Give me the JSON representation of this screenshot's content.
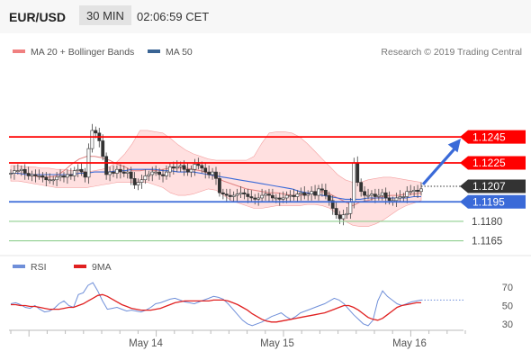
{
  "header": {
    "symbol": "EUR/USD",
    "timeframe": "30 MIN",
    "time": "02:06:59 CET"
  },
  "legend_top": [
    {
      "label": "MA 20 + Bollinger Bands",
      "color": "#f08080"
    },
    {
      "label": "MA 50",
      "color": "#3a6494"
    }
  ],
  "legend_rsi": [
    {
      "label": "RSI",
      "color": "#6f8fd9"
    },
    {
      "label": "9MA",
      "color": "#e02020"
    }
  ],
  "copyright": "Research © 2019 Trading Central",
  "colors": {
    "resistance": "#ff0000",
    "pivot": "#3a6ad8",
    "support": "#8fcf8f",
    "current": "#333333",
    "candle_up": "#555555",
    "candle_down": "#555555",
    "bb_fill": "#ffd6d6"
  },
  "chart_data": [
    {
      "type": "candlestick",
      "ylim": [
        1.1155,
        1.1295
      ],
      "x_ticks": [
        "May 14",
        "May 15",
        "May 16"
      ],
      "levels": [
        {
          "value": "1.1245",
          "kind": "resistance"
        },
        {
          "value": "1.1225",
          "kind": "resistance"
        },
        {
          "value": "1.1207",
          "kind": "current"
        },
        {
          "value": "1.1195",
          "kind": "pivot"
        },
        {
          "value": "1.1180",
          "kind": "support"
        },
        {
          "value": "1.1165",
          "kind": "support"
        }
      ],
      "forecast": {
        "from": 1.1207,
        "to": 1.1245,
        "direction": "up"
      },
      "close": [
        1.1217,
        1.1219,
        1.1219,
        1.122,
        1.1217,
        1.1215,
        1.1216,
        1.1215,
        1.1215,
        1.1214,
        1.1212,
        1.1212,
        1.1212,
        1.1214,
        1.1215,
        1.1214,
        1.1216,
        1.1215,
        1.1219,
        1.122,
        1.1218,
        1.1214,
        1.1236,
        1.125,
        1.1248,
        1.1242,
        1.123,
        1.1216,
        1.1218,
        1.1217,
        1.122,
        1.1218,
        1.1217,
        1.1218,
        1.1213,
        1.1208,
        1.121,
        1.1212,
        1.1215,
        1.1216,
        1.1218,
        1.1218,
        1.1216,
        1.1215,
        1.1218,
        1.1222,
        1.1221,
        1.1222,
        1.1223,
        1.122,
        1.1218,
        1.122,
        1.1224,
        1.1223,
        1.1221,
        1.1218,
        1.1216,
        1.1218,
        1.1213,
        1.1202,
        1.1201,
        1.12,
        1.1199,
        1.12,
        1.1201,
        1.1202,
        1.1201,
        1.1199,
        1.1198,
        1.1197,
        1.1198,
        1.12,
        1.1201,
        1.12,
        1.1198,
        1.1198,
        1.1197,
        1.1198,
        1.12,
        1.12,
        1.1199,
        1.1201,
        1.1202,
        1.12,
        1.1201,
        1.1203,
        1.12,
        1.1205,
        1.1204,
        1.12,
        1.1196,
        1.119,
        1.1185,
        1.1182,
        1.1185,
        1.1186,
        1.1195,
        1.1225,
        1.121,
        1.1203,
        1.12,
        1.12,
        1.1201,
        1.1199,
        1.12,
        1.1202,
        1.1198,
        1.1196,
        1.1196,
        1.1198,
        1.1199,
        1.1199,
        1.1203,
        1.1203,
        1.1204,
        1.1203,
        1.1205
      ],
      "bb_upper": [
        1.1223,
        1.1223,
        1.1222,
        1.1222,
        1.1221,
        1.1221,
        1.122,
        1.122,
        1.1219,
        1.1219,
        1.1218,
        1.1219,
        1.122,
        1.1222,
        1.1226,
        1.1232,
        1.124,
        1.125,
        1.125,
        1.1249,
        1.1248,
        1.1244,
        1.1239,
        1.1235,
        1.1232,
        1.123,
        1.1228,
        1.1227,
        1.1227,
        1.1227,
        1.1227,
        1.1227,
        1.123,
        1.124,
        1.1248,
        1.1249,
        1.1249,
        1.1248,
        1.1245,
        1.124,
        1.1234,
        1.1228,
        1.1222,
        1.1216,
        1.1212,
        1.121,
        1.121,
        1.1212,
        1.1213,
        1.1214,
        1.1214,
        1.1213,
        1.1212,
        1.1211,
        1.121
      ],
      "ma20": [
        1.1217,
        1.1217,
        1.1216,
        1.1215,
        1.1214,
        1.1214,
        1.1215,
        1.1219,
        1.1224,
        1.1228,
        1.123,
        1.123,
        1.1229,
        1.1227,
        1.1224,
        1.1222,
        1.1219,
        1.1219,
        1.122,
        1.1219,
        1.122,
        1.1221,
        1.1221,
        1.1221,
        1.122,
        1.1219,
        1.1217,
        1.1214,
        1.1211,
        1.1209,
        1.1207,
        1.1205,
        1.1204,
        1.1203,
        1.1202,
        1.1202,
        1.1201,
        1.12,
        1.12,
        1.1201,
        1.1202,
        1.1203,
        1.1201,
        1.1198,
        1.1195,
        1.1192,
        1.1195,
        1.1196,
        1.1198,
        1.1199,
        1.12,
        1.12,
        1.1201,
        1.1201,
        1.1202
      ],
      "bb_lower": [
        1.1211,
        1.1211,
        1.121,
        1.1209,
        1.1208,
        1.1207,
        1.1206,
        1.1206,
        1.1206,
        1.1206,
        1.1206,
        1.1207,
        1.1208,
        1.1209,
        1.121,
        1.121,
        1.121,
        1.121,
        1.121,
        1.1208,
        1.1206,
        1.1202,
        1.12,
        1.12,
        1.1201,
        1.1203,
        1.1205,
        1.1204,
        1.12,
        1.1196,
        1.1194,
        1.1192,
        1.119,
        1.119,
        1.1191,
        1.1192,
        1.1192,
        1.1192,
        1.1192,
        1.1193,
        1.1193,
        1.1192,
        1.119,
        1.1185,
        1.118,
        1.1177,
        1.1176,
        1.1176,
        1.1178,
        1.1181,
        1.1185,
        1.1189,
        1.1192,
        1.1194,
        1.1196
      ],
      "ma50": [
        1.1217,
        1.1217,
        1.1216,
        1.1216,
        1.1216,
        1.1216,
        1.1216,
        1.1216,
        1.1216,
        1.1217,
        1.1217,
        1.1218,
        1.1218,
        1.1218,
        1.1219,
        1.1219,
        1.122,
        1.122,
        1.122,
        1.122,
        1.1219,
        1.1219,
        1.1218,
        1.1218,
        1.1218,
        1.1217,
        1.1216,
        1.1215,
        1.1214,
        1.1213,
        1.1212,
        1.1211,
        1.121,
        1.1209,
        1.1208,
        1.1207,
        1.1206,
        1.1205,
        1.1203,
        1.1202,
        1.1201,
        1.12,
        1.1199,
        1.1198,
        1.1197,
        1.1197,
        1.1197,
        1.1198,
        1.1198,
        1.1198,
        1.1198,
        1.1198,
        1.1198,
        1.1199,
        1.1199
      ]
    },
    {
      "type": "line",
      "ylim": [
        20,
        80
      ],
      "y_ticks": [
        30,
        50,
        70
      ],
      "x_ticks": [
        "May 14",
        "May 15",
        "May 16"
      ],
      "series": [
        {
          "name": "RSI",
          "values": [
            52,
            53,
            51,
            48,
            47,
            50,
            46,
            43,
            44,
            47,
            52,
            55,
            50,
            48,
            62,
            64,
            72,
            75,
            66,
            55,
            46,
            47,
            48,
            46,
            44,
            45,
            44,
            43,
            45,
            48,
            52,
            53,
            55,
            57,
            58,
            56,
            54,
            53,
            52,
            54,
            56,
            58,
            60,
            59,
            57,
            52,
            46,
            40,
            34,
            30,
            28,
            30,
            32,
            35,
            38,
            40,
            42,
            38,
            35,
            38,
            42,
            44,
            46,
            48,
            50,
            52,
            55,
            58,
            56,
            52,
            46,
            40,
            35,
            30,
            28,
            34,
            55,
            66,
            60,
            56,
            52,
            50,
            52,
            54,
            55,
            56
          ]
        },
        {
          "name": "9MA",
          "values": [
            51,
            51,
            50,
            50,
            49,
            49,
            48,
            47,
            46,
            46,
            46,
            47,
            48,
            48,
            50,
            52,
            55,
            58,
            61,
            62,
            60,
            57,
            54,
            51,
            49,
            47,
            46,
            45,
            45,
            45,
            46,
            47,
            49,
            51,
            53,
            54,
            55,
            55,
            55,
            55,
            55,
            55,
            56,
            56,
            56,
            55,
            53,
            51,
            48,
            45,
            41,
            38,
            35,
            33,
            32,
            32,
            33,
            34,
            35,
            36,
            37,
            38,
            39,
            40,
            41,
            42,
            44,
            46,
            48,
            50,
            50,
            48,
            45,
            41,
            37,
            35,
            34,
            36,
            40,
            44,
            48,
            50,
            51,
            52,
            53,
            53
          ]
        }
      ]
    }
  ]
}
